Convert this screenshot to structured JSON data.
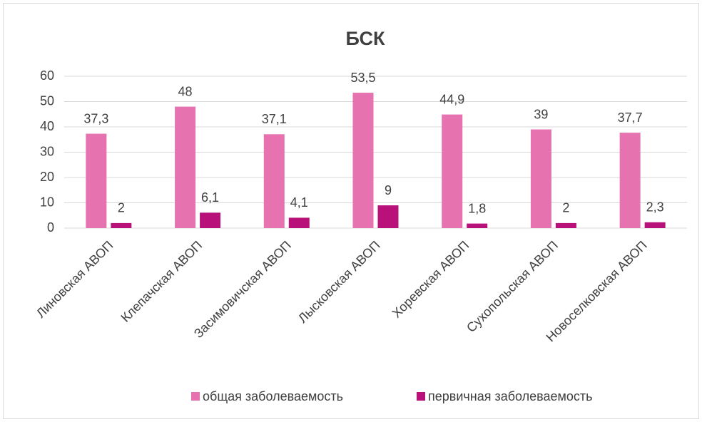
{
  "chart_data": {
    "type": "bar",
    "title": "БСК",
    "categories": [
      "Линовская АВОП",
      "Клепачская АВОП",
      "Засимовичская АВОП",
      "Лысковская АВОП",
      "Хоревская АВОП",
      "Сухопольская АВОП",
      "Новоселковская АВОП"
    ],
    "series": [
      {
        "name": "общая заболеваемость",
        "color": "#e672b0",
        "values": [
          37.3,
          48,
          37.1,
          53.5,
          44.9,
          39,
          37.7
        ],
        "value_labels": [
          "37,3",
          "48",
          "37,1",
          "53,5",
          "44,9",
          "39",
          "37,7"
        ]
      },
      {
        "name": "первичная заболеваемость",
        "color": "#b8127a",
        "values": [
          2,
          6.1,
          4.1,
          9,
          1.8,
          2,
          2.3
        ],
        "value_labels": [
          "2",
          "6,1",
          "4,1",
          "9",
          "1,8",
          "2",
          "2,3"
        ]
      }
    ],
    "ylim": [
      0,
      60
    ],
    "yticks": [
      0,
      10,
      20,
      30,
      40,
      50,
      60
    ],
    "grid": true,
    "legend": "bottom"
  }
}
